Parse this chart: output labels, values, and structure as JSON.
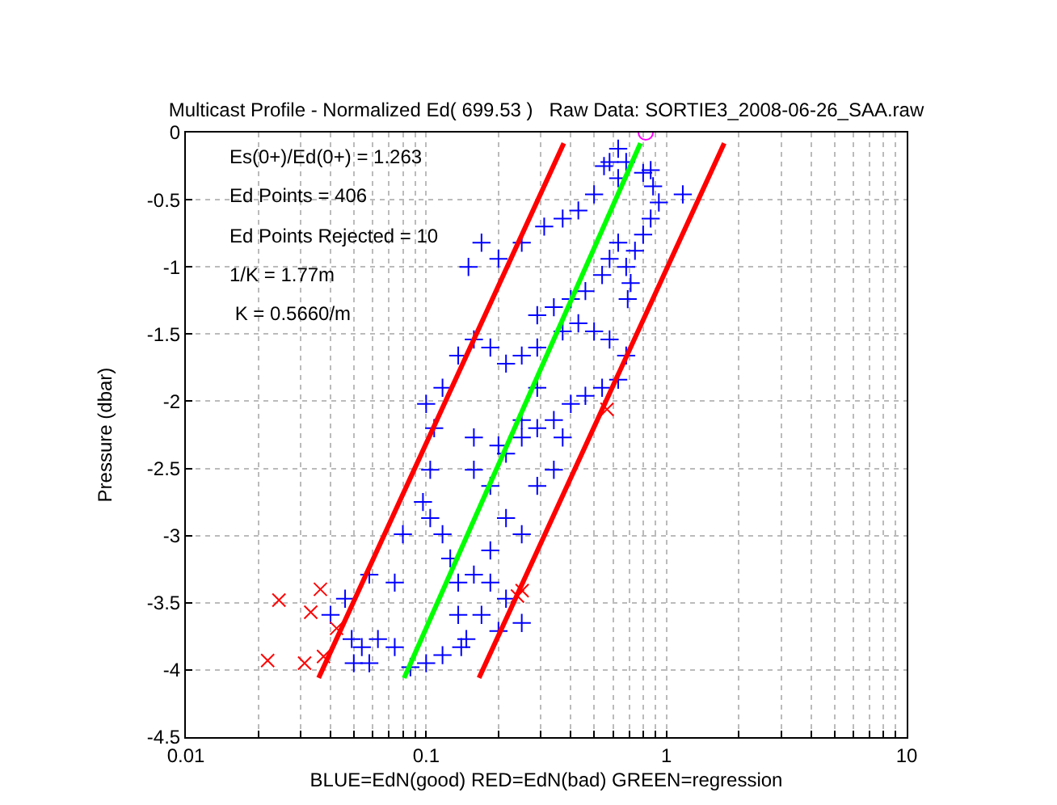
{
  "chart_data": {
    "type": "scatter",
    "title": "Multicast Profile - Normalized Ed( 699.53 )   Raw Data: SORTIE3_2008-06-26_SAA.raw",
    "xlabel": "BLUE=EdN(good) RED=EdN(bad) GREEN=regression",
    "ylabel": "Pressure (dbar)",
    "annotations": [
      "Es(0+)/Ed(0+) = 1.263",
      "Ed Points = 406",
      "Ed Points Rejected = 10",
      "1/K = 1.77m",
      " K = 0.5660/m"
    ],
    "log": "x",
    "grid": true,
    "xlim": [
      0.01,
      10
    ],
    "ylim": [
      -4.5,
      0
    ],
    "xticks": [
      0.01,
      {
        "value": 0.02,
        "label": null
      },
      {
        "value": 0.03,
        "label": null
      },
      {
        "value": 0.04,
        "label": null
      },
      {
        "value": 0.05,
        "label": null
      },
      {
        "value": 0.06,
        "label": null
      },
      {
        "value": 0.07,
        "label": null
      },
      {
        "value": 0.08,
        "label": null
      },
      {
        "value": 0.09,
        "label": null
      },
      0.1,
      {
        "value": 0.2,
        "label": null
      },
      {
        "value": 0.3,
        "label": null
      },
      {
        "value": 0.4,
        "label": null
      },
      {
        "value": 0.5,
        "label": null
      },
      {
        "value": 0.6,
        "label": null
      },
      {
        "value": 0.7,
        "label": null
      },
      {
        "value": 0.8,
        "label": null
      },
      {
        "value": 0.9,
        "label": null
      },
      1,
      {
        "value": 2,
        "label": null
      },
      {
        "value": 3,
        "label": null
      },
      {
        "value": 4,
        "label": null
      },
      {
        "value": 5,
        "label": null
      },
      {
        "value": 6,
        "label": null
      },
      {
        "value": 7,
        "label": null
      },
      {
        "value": 8,
        "label": null
      },
      {
        "value": 9,
        "label": null
      },
      10
    ],
    "yticks": [
      0,
      -0.5,
      -1,
      -1.5,
      -2,
      -2.5,
      -3,
      -3.5,
      -4,
      -4.5
    ],
    "series": [
      {
        "marker": "cross",
        "color": "#0000ff",
        "x": [
          0.58,
          0.63,
          0.55,
          0.68,
          0.8,
          0.86,
          0.88,
          0.93,
          1.17,
          0.86,
          0.8,
          0.74,
          0.68,
          0.71,
          0.69,
          0.63,
          0.58,
          0.54,
          0.46,
          0.4,
          0.34,
          0.29,
          0.2,
          0.17,
          0.15,
          0.25,
          0.31,
          0.37,
          0.43,
          0.5,
          0.63,
          0.158,
          0.136,
          0.185,
          0.215,
          0.25,
          0.29,
          0.37,
          0.43,
          0.5,
          0.58,
          0.68,
          0.63,
          0.54,
          0.46,
          0.4,
          0.34,
          0.29,
          0.25,
          0.2,
          0.158,
          0.117,
          0.1,
          0.108,
          0.104,
          0.097,
          0.104,
          0.117,
          0.126,
          0.136,
          0.136,
          0.14,
          0.117,
          0.1,
          0.086,
          0.074,
          0.063,
          0.054,
          0.049,
          0.05,
          0.058,
          0.08,
          0.074,
          0.058,
          0.046,
          0.04,
          0.158,
          0.185,
          0.215,
          0.25,
          0.185,
          0.158,
          0.185,
          0.215,
          0.25,
          0.2,
          0.147,
          0.17,
          0.215,
          0.29,
          0.34,
          0.25,
          0.37,
          0.29
        ],
        "values": [
          -0.22,
          -0.12,
          -0.25,
          -0.22,
          -0.3,
          -0.28,
          -0.4,
          -0.52,
          -0.46,
          -0.64,
          -0.76,
          -0.88,
          -1.0,
          -1.12,
          -1.24,
          -0.82,
          -0.94,
          -1.06,
          -1.18,
          -1.24,
          -1.3,
          -1.36,
          -0.94,
          -0.82,
          -1.0,
          -0.82,
          -0.7,
          -0.64,
          -0.58,
          -0.46,
          -0.34,
          -1.54,
          -1.66,
          -1.6,
          -1.72,
          -1.66,
          -1.6,
          -1.48,
          -1.42,
          -1.48,
          -1.54,
          -1.66,
          -1.84,
          -1.9,
          -1.96,
          -2.02,
          -2.14,
          -2.2,
          -2.27,
          -2.33,
          -2.27,
          -1.9,
          -2.02,
          -2.2,
          -2.51,
          -2.75,
          -2.87,
          -2.99,
          -3.17,
          -3.35,
          -3.59,
          -3.83,
          -3.89,
          -3.95,
          -3.98,
          -3.83,
          -3.77,
          -3.83,
          -3.77,
          -3.95,
          -3.95,
          -2.99,
          -3.35,
          -3.29,
          -3.47,
          -3.59,
          -2.51,
          -2.63,
          -2.87,
          -2.99,
          -3.11,
          -3.29,
          -3.35,
          -3.47,
          -3.65,
          -3.71,
          -3.77,
          -3.59,
          -2.39,
          -2.63,
          -2.51,
          -2.14,
          -2.27,
          -1.9
        ]
      },
      {
        "marker": "x",
        "color": "#ff0000",
        "x": [
          0.0219,
          0.0244,
          0.0331,
          0.0363,
          0.0312,
          0.0374,
          0.0424,
          0.251,
          0.24,
          0.566
        ],
        "values": [
          -3.93,
          -3.48,
          -3.57,
          -3.4,
          -3.95,
          -3.9,
          -3.69,
          -3.41,
          -3.45,
          -2.06
        ]
      },
      {
        "type": "line",
        "color": "#ff0000",
        "x": [
          0.0357,
          0.374
        ],
        "values": [
          -4.06,
          -0.08
        ]
      },
      {
        "type": "line",
        "color": "#ff0000",
        "x": [
          0.166,
          1.74
        ],
        "values": [
          -4.06,
          -0.08
        ]
      },
      {
        "type": "line",
        "color": "#00ff00",
        "x": [
          0.081,
          0.78
        ],
        "values": [
          -4.06,
          -0.08
        ]
      },
      {
        "marker": "circle",
        "color": "#ff00ff",
        "x": [
          0.82
        ],
        "values": [
          0
        ]
      }
    ]
  }
}
